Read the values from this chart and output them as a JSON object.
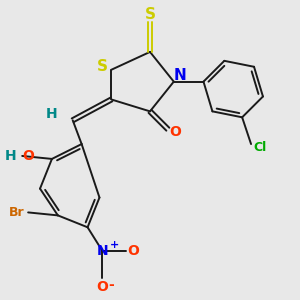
{
  "background_color": "#e8e8e8",
  "colors": {
    "S": "#cccc00",
    "N": "#0000ee",
    "O": "#ff3300",
    "Br": "#cc6600",
    "Cl": "#00aa00",
    "H": "#008888",
    "bond": "#1a1a1a"
  },
  "font_size": 9
}
